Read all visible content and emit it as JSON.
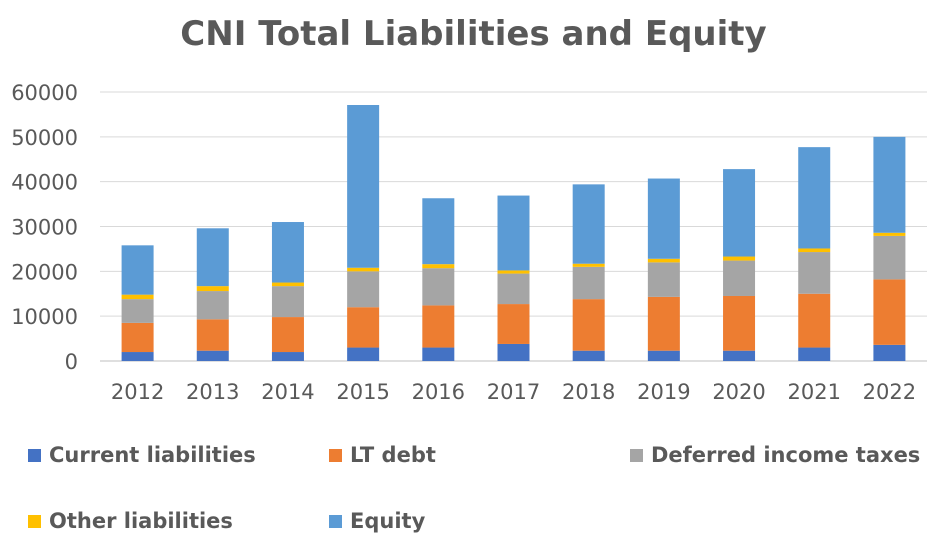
{
  "chart_data": {
    "type": "bar",
    "stacked": true,
    "title": "CNI Total Liabilities and Equity",
    "xlabel": "",
    "ylabel": "",
    "ylim": [
      0,
      60000
    ],
    "yticks": [
      "0",
      "10000",
      "20000",
      "30000",
      "40000",
      "50000",
      "60000"
    ],
    "grid": true,
    "legend_position": "bottom",
    "categories": [
      "2012",
      "2013",
      "2014",
      "2015",
      "2016",
      "2017",
      "2018",
      "2019",
      "2020",
      "2021",
      "2022"
    ],
    "series": [
      {
        "name": "Current liabilities",
        "color": "#4472C4",
        "values": [
          2000,
          2300,
          2000,
          3000,
          3000,
          3800,
          2300,
          2300,
          2300,
          3000,
          3600
        ]
      },
      {
        "name": "LT debt",
        "color": "#ED7D31",
        "values": [
          6500,
          7000,
          7800,
          9000,
          9400,
          8900,
          11500,
          12000,
          12200,
          12000,
          14600
        ]
      },
      {
        "name": "Deferred income taxes",
        "color": "#A5A5A5",
        "values": [
          5300,
          6300,
          6900,
          8000,
          8300,
          6800,
          7200,
          7700,
          7900,
          9300,
          9700
        ]
      },
      {
        "name": "Other liabilities",
        "color": "#FFC000",
        "values": [
          1000,
          1100,
          800,
          800,
          900,
          700,
          700,
          800,
          900,
          800,
          700
        ]
      },
      {
        "name": "Equity",
        "color": "#5B9BD5",
        "values": [
          11000,
          12900,
          13500,
          36300,
          14700,
          16700,
          17700,
          17900,
          19500,
          22600,
          21400
        ]
      }
    ]
  }
}
